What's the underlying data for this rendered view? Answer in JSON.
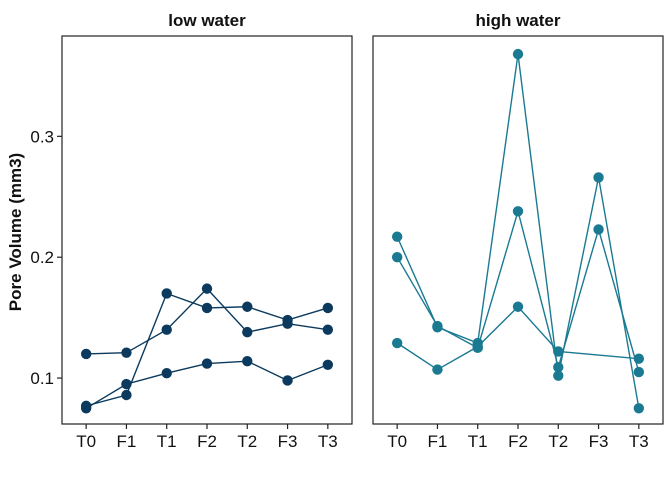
{
  "chart_data": {
    "type": "line",
    "ylabel": "Pore Volume (mm3)",
    "xlabel": "",
    "categories": [
      "T0",
      "F1",
      "T1",
      "F2",
      "T2",
      "F3",
      "T3"
    ],
    "ylim": [
      0.062,
      0.383
    ],
    "yticks": [
      0.1,
      0.2,
      0.3
    ],
    "ytick_labels": [
      "0.1",
      "0.2",
      "0.3"
    ],
    "grid": false,
    "marker": "circle",
    "panels": [
      {
        "title": "low water",
        "color": "#0b3a5e",
        "series": [
          {
            "values": [
              0.12,
              0.121,
              0.14,
              0.174,
              0.138,
              0.145,
              0.14
            ]
          },
          {
            "values": [
              0.077,
              0.086,
              0.17,
              0.158,
              0.159,
              0.148,
              0.158
            ]
          },
          {
            "values": [
              0.075,
              0.095,
              0.104,
              0.112,
              0.114,
              0.098,
              0.111
            ]
          }
        ]
      },
      {
        "title": "high water",
        "color": "#1a7a92",
        "series": [
          {
            "values": [
              0.217,
              0.142,
              0.129,
              0.368,
              0.102,
              0.266,
              0.075
            ]
          },
          {
            "values": [
              0.2,
              0.143,
              0.125,
              0.238,
              0.109,
              0.223,
              0.105
            ]
          },
          {
            "values": [
              0.129,
              0.107,
              0.126,
              0.159,
              0.122,
              null,
              0.116
            ]
          }
        ]
      }
    ]
  }
}
